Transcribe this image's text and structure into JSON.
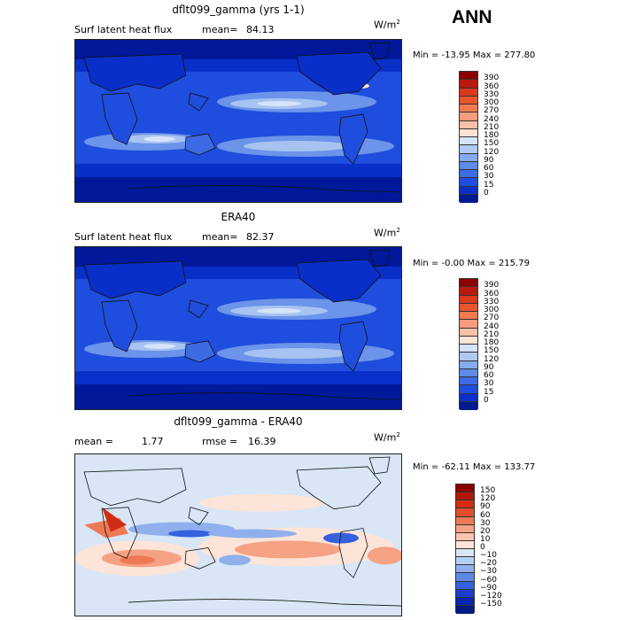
{
  "season": "ANN",
  "panels": [
    {
      "title": "dflt099_gamma (yrs 1-1)",
      "left_label": "Surf latent heat flux",
      "mean_label": "mean=",
      "mean_value": "84.13",
      "units": "W/m",
      "units_exp": "2",
      "minmax": "Min = -13.95 Max = 277.80",
      "colorbar": {
        "levels": [
          "390",
          "360",
          "330",
          "300",
          "270",
          "240",
          "210",
          "180",
          "150",
          "120",
          "90",
          "60",
          "30",
          "15",
          "0"
        ],
        "colors": [
          "#8b0000",
          "#b81a10",
          "#d93a20",
          "#e8562e",
          "#f07a52",
          "#f59d7e",
          "#f8c0a6",
          "#fbe3d4",
          "#d4e3f7",
          "#aec9f2",
          "#86aaee",
          "#5f8be8",
          "#3d6be4",
          "#1f4ddd",
          "#0a2fc8",
          "#001a8f"
        ]
      },
      "map_palette": [
        "#00199a",
        "#0a2fc8",
        "#1f4ddd",
        "#3d6be4",
        "#6b94ea",
        "#a7c3f1",
        "#d5e4f8",
        "#fbe3d4"
      ]
    },
    {
      "title": "ERA40",
      "left_label": "Surf latent heat flux",
      "mean_label": "mean=",
      "mean_value": "82.37",
      "units": "W/m",
      "units_exp": "2",
      "minmax": "Min = -0.00 Max = 215.79",
      "colorbar": {
        "levels": [
          "390",
          "360",
          "330",
          "300",
          "270",
          "240",
          "210",
          "180",
          "150",
          "120",
          "90",
          "60",
          "30",
          "15",
          "0"
        ],
        "colors": [
          "#8b0000",
          "#b81a10",
          "#d93a20",
          "#e8562e",
          "#f07a52",
          "#f59d7e",
          "#f8c0a6",
          "#fbe3d4",
          "#d4e3f7",
          "#aec9f2",
          "#86aaee",
          "#5f8be8",
          "#3d6be4",
          "#1f4ddd",
          "#0a2fc8",
          "#001a8f"
        ]
      },
      "map_palette": [
        "#00199a",
        "#0a2fc8",
        "#1f4ddd",
        "#3d6be4",
        "#6b94ea",
        "#a7c3f1",
        "#d5e4f8"
      ]
    },
    {
      "title": "dflt099_gamma - ERA40",
      "mean_label": "mean =",
      "mean_value": "1.77",
      "rmse_label": "rmse =",
      "rmse_value": "16.39",
      "units": "W/m",
      "units_exp": "2",
      "minmax": "Min = -62.11 Max = 133.77",
      "colorbar": {
        "levels": [
          "150",
          "120",
          "90",
          "60",
          "30",
          "20",
          "10",
          "0",
          "−10",
          "−20",
          "−30",
          "−60",
          "−90",
          "−120",
          "−150"
        ],
        "colors": [
          "#8b0000",
          "#b01808",
          "#cf2e14",
          "#e04e2a",
          "#ee7a55",
          "#f5a183",
          "#f9c4ad",
          "#fde4d8",
          "#d8e6f6",
          "#b7cff2",
          "#8fb0ec",
          "#5f88e5",
          "#3661dc",
          "#1a3fcd",
          "#0c23ad",
          "#001a7f"
        ]
      },
      "map_palette": [
        "#0c23ad",
        "#3661dc",
        "#8fb0ec",
        "#d8e6f6",
        "#fde4d8",
        "#f5a183",
        "#ee7a55",
        "#cf2e14"
      ]
    }
  ]
}
